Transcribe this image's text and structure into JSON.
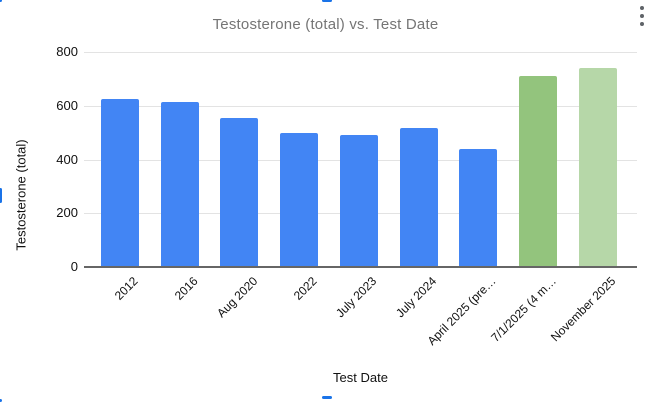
{
  "header": {
    "menu_icon": "kebab-menu"
  },
  "chart_data": {
    "type": "bar",
    "title": "Testosterone (total) vs. Test Date",
    "xlabel": "Test Date",
    "ylabel": "Testosterone (total)",
    "ylim": [
      0,
      800
    ],
    "y_ticks": [
      0,
      200,
      400,
      600,
      800
    ],
    "grid": true,
    "legend": "none",
    "categories": [
      "2012",
      "2016",
      "Aug 2020",
      "2022",
      "July 2023",
      "July 2024",
      "April 2025 (pre…",
      "7/1/2025 (4 m…",
      "November 2025"
    ],
    "values": [
      625,
      615,
      553,
      500,
      490,
      517,
      438,
      710,
      740
    ],
    "bar_colors": [
      "#4285f4",
      "#4285f4",
      "#4285f4",
      "#4285f4",
      "#4285f4",
      "#4285f4",
      "#4285f4",
      "#93c47d",
      "#b6d7a8"
    ]
  },
  "colors": {
    "bar_blue": "#4285f4",
    "bar_green": "#93c47d",
    "bar_light_green": "#b6d7a8",
    "title_text": "#757575",
    "axis_text": "#111111",
    "gridline": "#e3e3e3",
    "axis_line": "#666666",
    "selection_handle": "#1a73e8",
    "menu_dots": "#5f6368"
  }
}
